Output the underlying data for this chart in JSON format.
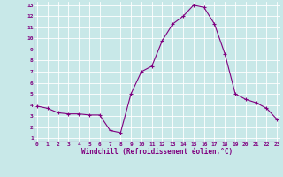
{
  "x": [
    0,
    1,
    2,
    3,
    4,
    5,
    6,
    7,
    8,
    9,
    10,
    11,
    12,
    13,
    14,
    15,
    16,
    17,
    18,
    19,
    20,
    21,
    22,
    23
  ],
  "y": [
    3.9,
    3.7,
    3.3,
    3.2,
    3.2,
    3.1,
    3.1,
    1.7,
    1.5,
    5.0,
    7.0,
    7.5,
    9.8,
    11.3,
    12.0,
    13.0,
    12.8,
    11.3,
    8.6,
    5.0,
    4.5,
    4.2,
    3.7,
    2.7
  ],
  "line_color": "#800080",
  "marker": "+",
  "marker_size": 3,
  "bg_color": "#c8e8e8",
  "grid_color": "#ffffff",
  "xlabel": "Windchill (Refroidissement éolien,°C)",
  "xlabel_color": "#800080",
  "tick_color": "#800080",
  "ylim": [
    1,
    13
  ],
  "xlim": [
    0,
    23
  ],
  "yticks": [
    1,
    2,
    3,
    4,
    5,
    6,
    7,
    8,
    9,
    10,
    11,
    12,
    13
  ],
  "xticks": [
    0,
    1,
    2,
    3,
    4,
    5,
    6,
    7,
    8,
    9,
    10,
    11,
    12,
    13,
    14,
    15,
    16,
    17,
    18,
    19,
    20,
    21,
    22,
    23
  ]
}
